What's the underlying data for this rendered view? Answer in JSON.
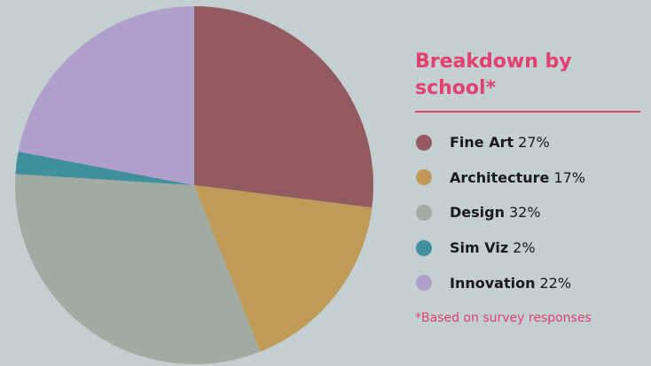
{
  "chart_data": {
    "type": "pie",
    "title": "Breakdown by school*",
    "categories": [
      "Fine Art",
      "Architecture",
      "Design",
      "Sim Viz",
      "Innovation"
    ],
    "values": [
      27,
      17,
      32,
      2,
      22
    ],
    "value_labels": [
      "27%",
      "17%",
      "32%",
      "2%",
      "22%"
    ],
    "colors": [
      "#935b60",
      "#c09a58",
      "#a2aba2",
      "#3f8f9e",
      "#b09ecc"
    ],
    "footnote": "*Based on survey responses"
  }
}
